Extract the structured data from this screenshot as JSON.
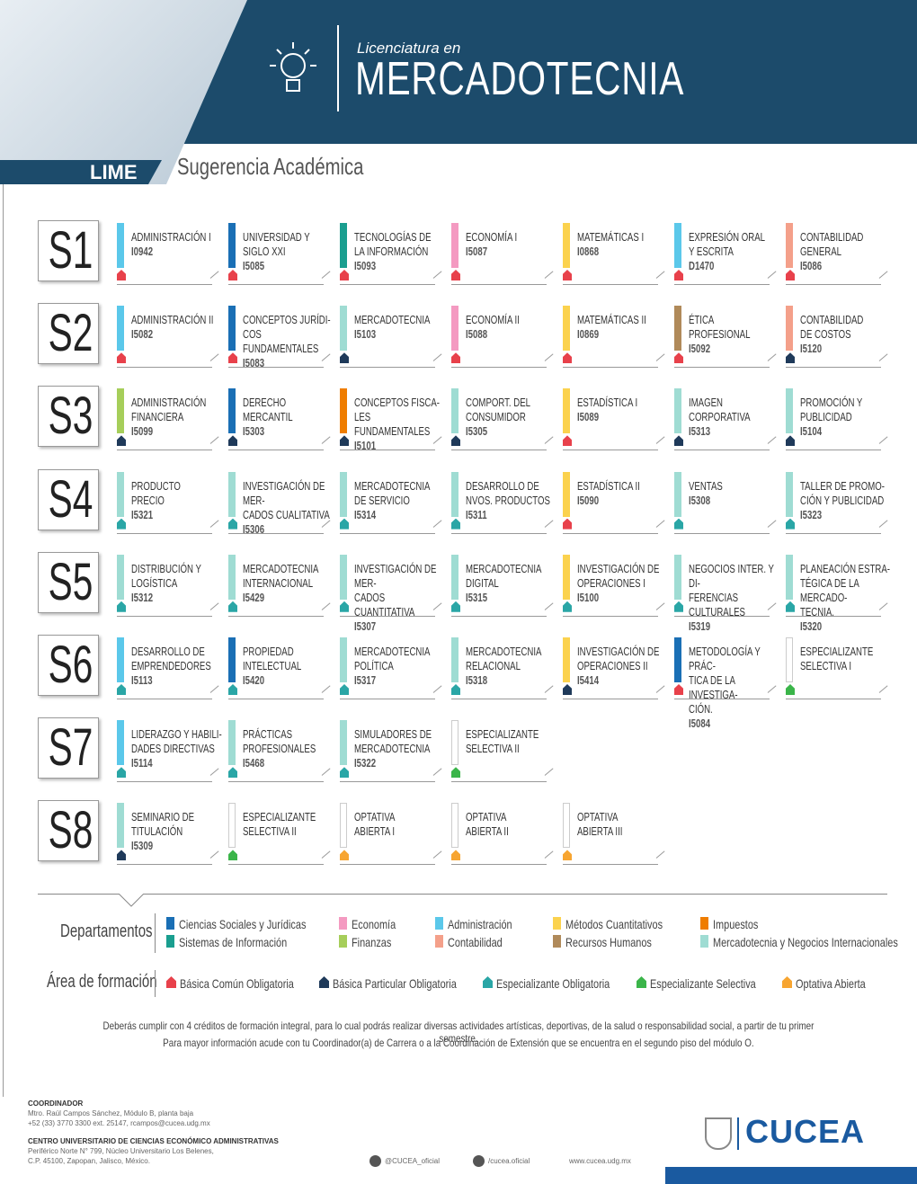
{
  "header": {
    "badge": "LIME",
    "pre_title": "Licenciatura en",
    "title": "MERCADOTECNIA",
    "subtitle": "Sugerencia Académica"
  },
  "semesters": [
    {
      "label": "S1",
      "courses": [
        {
          "name": "ADMINISTRACIÓN I",
          "code": "I0942",
          "color": "#5bc8ea",
          "area_color": "#e8414b"
        },
        {
          "name": "UNIVERSIDAD Y\nSIGLO XXI",
          "code": "I5085",
          "color": "#1a6fb5",
          "area_color": "#e8414b"
        },
        {
          "name": "TECNOLOGÍAS DE\nLA INFORMACIÓN",
          "code": "I5093",
          "color": "#1a9e8f",
          "area_color": "#e8414b"
        },
        {
          "name": "ECONOMÍA I",
          "code": "I5087",
          "color": "#f49ac1",
          "area_color": "#e8414b"
        },
        {
          "name": "MATEMÁTICAS I",
          "code": "I0868",
          "color": "#fbd24e",
          "area_color": "#e8414b"
        },
        {
          "name": "EXPRESIÓN ORAL\nY ESCRITA",
          "code": "D1470",
          "color": "#5bc8ea",
          "area_color": "#e8414b"
        },
        {
          "name": "CONTABILIDAD\nGENERAL",
          "code": "I5086",
          "color": "#f4a08a",
          "area_color": "#e8414b"
        }
      ]
    },
    {
      "label": "S2",
      "courses": [
        {
          "name": "ADMINISTRACIÓN II",
          "code": "I5082",
          "color": "#5bc8ea",
          "area_color": "#e8414b"
        },
        {
          "name": "CONCEPTOS JURÍDI-\nCOS FUNDAMENTALES",
          "code": "I5083",
          "color": "#1a6fb5",
          "area_color": "#e8414b"
        },
        {
          "name": "MERCADOTECNIA",
          "code": "I5103",
          "color": "#9fdcd3",
          "area_color": "#1f3a5a"
        },
        {
          "name": "ECONOMÍA II",
          "code": "I5088",
          "color": "#f49ac1",
          "area_color": "#e8414b"
        },
        {
          "name": "MATEMÁTICAS II",
          "code": "I0869",
          "color": "#fbd24e",
          "area_color": "#e8414b"
        },
        {
          "name": "ÉTICA\nPROFESIONAL",
          "code": "I5092",
          "color": "#b08a5a",
          "area_color": "#e8414b"
        },
        {
          "name": "CONTABILIDAD\nDE COSTOS",
          "code": "I5120",
          "color": "#f4a08a",
          "area_color": "#1f3a5a"
        }
      ]
    },
    {
      "label": "S3",
      "courses": [
        {
          "name": "ADMINISTRACIÓN\nFINANCIERA",
          "code": "I5099",
          "color": "#a6ce5a",
          "area_color": "#1f3a5a"
        },
        {
          "name": "DERECHO\nMERCANTIL",
          "code": "I5303",
          "color": "#1a6fb5",
          "area_color": "#1f3a5a"
        },
        {
          "name": "CONCEPTOS FISCA-\nLES FUNDAMENTALES",
          "code": "I5101",
          "color": "#ef7d00",
          "area_color": "#1f3a5a"
        },
        {
          "name": "COMPORT. DEL\nCONSUMIDOR",
          "code": "I5305",
          "color": "#9fdcd3",
          "area_color": "#1f3a5a"
        },
        {
          "name": "ESTADÍSTICA I",
          "code": "I5089",
          "color": "#fbd24e",
          "area_color": "#e8414b"
        },
        {
          "name": "IMAGEN\nCORPORATIVA",
          "code": "I5313",
          "color": "#9fdcd3",
          "area_color": "#1f3a5a"
        },
        {
          "name": "PROMOCIÓN Y\nPUBLICIDAD",
          "code": "I5104",
          "color": "#9fdcd3",
          "area_color": "#1f3a5a"
        }
      ]
    },
    {
      "label": "S4",
      "courses": [
        {
          "name": "PRODUCTO\nPRECIO",
          "code": "I5321",
          "color": "#9fdcd3",
          "area_color": "#2aa6a6"
        },
        {
          "name": "INVESTIGACIÓN DE MER-\nCADOS CUALITATIVA",
          "code": "I5306",
          "color": "#9fdcd3",
          "area_color": "#2aa6a6"
        },
        {
          "name": "MERCADOTECNIA\nDE SERVICIO",
          "code": "I5314",
          "color": "#9fdcd3",
          "area_color": "#2aa6a6"
        },
        {
          "name": "DESARROLLO DE\nNVOS. PRODUCTOS",
          "code": "I5311",
          "color": "#9fdcd3",
          "area_color": "#2aa6a6"
        },
        {
          "name": "ESTADÍSTICA II",
          "code": "I5090",
          "color": "#fbd24e",
          "area_color": "#e8414b"
        },
        {
          "name": "VENTAS",
          "code": "I5308",
          "color": "#9fdcd3",
          "area_color": "#2aa6a6"
        },
        {
          "name": "TALLER DE PROMO-\nCIÓN Y PUBLICIDAD",
          "code": "I5323",
          "color": "#9fdcd3",
          "area_color": "#2aa6a6"
        }
      ]
    },
    {
      "label": "S5",
      "courses": [
        {
          "name": "DISTRIBUCIÓN Y\nLOGÍSTICA",
          "code": "I5312",
          "color": "#9fdcd3",
          "area_color": "#2aa6a6"
        },
        {
          "name": "MERCADOTECNIA\nINTERNACIONAL",
          "code": "I5429",
          "color": "#9fdcd3",
          "area_color": "#2aa6a6"
        },
        {
          "name": "INVESTIGACIÓN DE MER-\nCADOS CUANTITATIVA",
          "code": "I5307",
          "color": "#9fdcd3",
          "area_color": "#2aa6a6"
        },
        {
          "name": "MERCADOTECNIA\nDIGITAL",
          "code": "I5315",
          "color": "#9fdcd3",
          "area_color": "#2aa6a6"
        },
        {
          "name": "INVESTIGACIÓN DE\nOPERACIONES I",
          "code": "I5100",
          "color": "#fbd24e",
          "area_color": "#2aa6a6"
        },
        {
          "name": "NEGOCIOS INTER. Y DI-\nFERENCIAS CULTURALES",
          "code": "I5319",
          "color": "#9fdcd3",
          "area_color": "#2aa6a6"
        },
        {
          "name": "PLANEACIÓN ESTRA-\nTÉGICA DE LA MERCADO-\nTECNIA.",
          "code": "I5320",
          "color": "#9fdcd3",
          "area_color": "#2aa6a6"
        }
      ]
    },
    {
      "label": "S6",
      "courses": [
        {
          "name": "DESARROLLO DE\nEMPRENDEDORES",
          "code": "I5113",
          "color": "#5bc8ea",
          "area_color": "#2aa6a6"
        },
        {
          "name": "PROPIEDAD\nINTELECTUAL",
          "code": "I5420",
          "color": "#1a6fb5",
          "area_color": "#2aa6a6"
        },
        {
          "name": "MERCADOTECNIA\nPOLÍTICA",
          "code": "I5317",
          "color": "#9fdcd3",
          "area_color": "#2aa6a6"
        },
        {
          "name": "MERCADOTECNIA\nRELACIONAL",
          "code": "I5318",
          "color": "#9fdcd3",
          "area_color": "#2aa6a6"
        },
        {
          "name": "INVESTIGACIÓN DE\nOPERACIONES II",
          "code": "I5414",
          "color": "#fbd24e",
          "area_color": "#1f3a5a"
        },
        {
          "name": "METODOLOGÍA Y PRÁC-\nTICA DE LA INVESTIGA-\nCIÓN.",
          "code": "I5084",
          "color": "#1a6fb5",
          "area_color": "#e8414b"
        },
        {
          "name": "ESPECIALIZANTE\nSELECTIVA I",
          "color": "#ffffff",
          "area_color": "#3bb54a"
        }
      ]
    },
    {
      "label": "S7",
      "courses": [
        {
          "name": "LIDERAZGO Y HABILI-\nDADES DIRECTIVAS",
          "code": "I5114",
          "color": "#5bc8ea",
          "area_color": "#2aa6a6"
        },
        {
          "name": "PRÁCTICAS\nPROFESIONALES",
          "code": "I5468",
          "color": "#9fdcd3",
          "area_color": "#2aa6a6"
        },
        {
          "name": "SIMULADORES DE\nMERCADOTECNIA",
          "code": "I5322",
          "color": "#9fdcd3",
          "area_color": "#2aa6a6"
        },
        {
          "name": "ESPECIALIZANTE\nSELECTIVA II",
          "color": "#ffffff",
          "area_color": "#3bb54a"
        }
      ]
    },
    {
      "label": "S8",
      "courses": [
        {
          "name": "SEMINARIO DE\nTITULACIÓN",
          "code": "I5309",
          "color": "#9fdcd3",
          "area_color": "#1f3a5a"
        },
        {
          "name": "ESPECIALIZANTE\nSELECTIVA II",
          "color": "#ffffff",
          "area_color": "#3bb54a"
        },
        {
          "name": "OPTATIVA\nABIERTA I",
          "color": "#ffffff",
          "area_color": "#f7a531"
        },
        {
          "name": "OPTATIVA\nABIERTA II",
          "color": "#ffffff",
          "area_color": "#f7a531"
        },
        {
          "name": "OPTATIVA\nABIERTA III",
          "color": "#ffffff",
          "area_color": "#f7a531"
        }
      ]
    }
  ],
  "legend": {
    "departments_title": "Departamentos",
    "departments": [
      {
        "name": "Ciencias Sociales y Jurídicas",
        "color": "#1a6fb5"
      },
      {
        "name": "Economía",
        "color": "#f49ac1"
      },
      {
        "name": "Administración",
        "color": "#5bc8ea"
      },
      {
        "name": "Métodos Cuantitativos",
        "color": "#fbd24e"
      },
      {
        "name": "Impuestos",
        "color": "#ef7d00"
      },
      {
        "name": "Sistemas de Información",
        "color": "#1a9e8f"
      },
      {
        "name": "Finanzas",
        "color": "#a6ce5a"
      },
      {
        "name": "Contabilidad",
        "color": "#f4a08a"
      },
      {
        "name": "Recursos Humanos",
        "color": "#b08a5a"
      },
      {
        "name": "Mercadotecnia y Negocios Internacionales",
        "color": "#9fdcd3"
      }
    ],
    "areas_title": "Área de formación",
    "areas": [
      {
        "name": "Básica Común Obligatoria",
        "color": "#e8414b"
      },
      {
        "name": "Básica Particular Obligatoria",
        "color": "#1f3a5a"
      },
      {
        "name": "Especializante Obligatoria",
        "color": "#2aa6a6"
      },
      {
        "name": "Especializante Selectiva",
        "color": "#3bb54a"
      },
      {
        "name": "Optativa Abierta",
        "color": "#f7a531"
      }
    ]
  },
  "notes": [
    "Deberás cumplir con 4 créditos de formación integral, para lo cual podrás realizar diversas actividades artísticas, deportivas, de la salud o responsabilidad social, a partir de tu primer semestre.",
    "Para mayor información acude con tu Coordinador(a) de Carrera o a la Coordinación de Extensión que se encuentra en el segundo piso del módulo O."
  ],
  "footer": {
    "coordinator_title": "COORDINADOR",
    "coordinator": "Mtro. Raúl Campos Sánchez, Módulo B, planta baja",
    "contact": "+52 (33) 3770 3300 ext. 25147, rcampos@cucea.udg.mx",
    "center": "CENTRO UNIVERSITARIO DE CIENCIAS ECONÓMICO ADMINISTRATIVAS",
    "address_1": "Periférico Norte N° 799, Núcleo Universitario Los Belenes,",
    "address_2": "C.P. 45100, Zapopan, Jalisco, México.",
    "twitter": "@CUCEA_oficial",
    "facebook": "/cucea.oficial",
    "web": "www.cucea.udg.mx",
    "logo": "CUCEA"
  }
}
